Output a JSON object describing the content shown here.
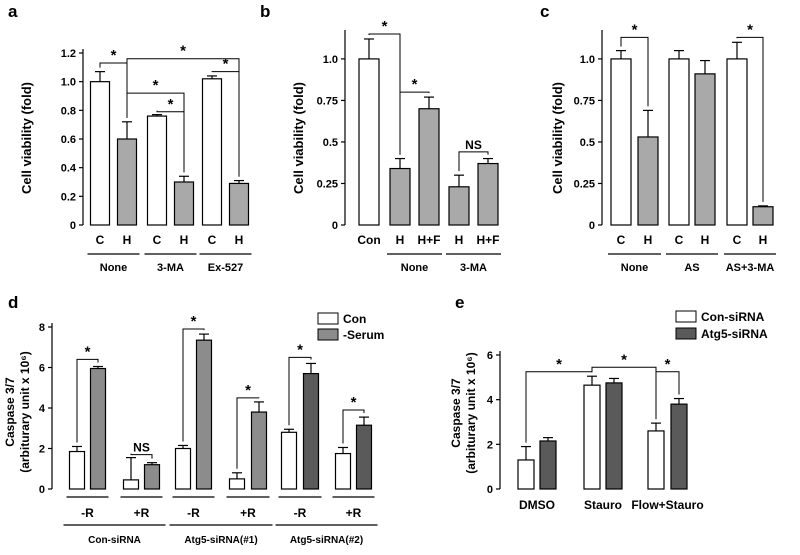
{
  "colors": {
    "white": "#ffffff",
    "light_gray": "#a9a9a9",
    "mid_gray": "#8c8c8c",
    "dark_gray": "#5a5a5a",
    "stroke": "#000000"
  },
  "chart_data": [
    {
      "id": "a",
      "type": "bar",
      "ylabel": "Cell viability (fold)",
      "ylim": [
        0,
        1.2
      ],
      "yticks": [
        "0",
        "0.2",
        "0.4",
        "0.6",
        "0.8",
        "1.0",
        "1.2"
      ],
      "categories": [
        "C",
        "H",
        "C",
        "H",
        "C",
        "H"
      ],
      "values": [
        1.0,
        0.6,
        0.76,
        0.3,
        1.02,
        0.29
      ],
      "errors": [
        0.07,
        0.12,
        0.01,
        0.04,
        0.02,
        0.02
      ],
      "fills": [
        "white",
        "light_gray",
        "white",
        "light_gray",
        "white",
        "light_gray"
      ],
      "groups": [
        {
          "label": "None",
          "from": 0,
          "to": 1
        },
        {
          "label": "3-MA",
          "from": 2,
          "to": 3
        },
        {
          "label": "Ex-527",
          "from": 4,
          "to": 5
        }
      ],
      "sig": [
        {
          "label": "*",
          "from": 0,
          "to": 1,
          "y": 1.13
        },
        {
          "label": "*",
          "from": 1,
          "to": 5,
          "y": 1.16
        },
        {
          "label": "*",
          "from": 1,
          "to": 3,
          "y": 0.92
        },
        {
          "label": "*",
          "from": 2,
          "to": 3,
          "y": 0.79
        },
        {
          "label": "*",
          "from": 4,
          "to": 5,
          "y": 1.07
        }
      ]
    },
    {
      "id": "b",
      "type": "bar",
      "ylabel": "Cell viability (fold)",
      "ylim": [
        0,
        1.15
      ],
      "yticks": [
        "0",
        "0.25",
        "0.5",
        "0.75",
        "1.0"
      ],
      "ytick_values": [
        0,
        0.25,
        0.5,
        0.75,
        1.0
      ],
      "categories": [
        "Con",
        "H",
        "H+F",
        "H",
        "H+F"
      ],
      "values": [
        1.0,
        0.34,
        0.7,
        0.23,
        0.37
      ],
      "errors": [
        0.12,
        0.06,
        0.07,
        0.07,
        0.03
      ],
      "fills": [
        "white",
        "light_gray",
        "light_gray",
        "light_gray",
        "light_gray"
      ],
      "groups": [
        {
          "label": "None",
          "from": 1,
          "to": 2
        },
        {
          "label": "3-MA",
          "from": 3,
          "to": 4
        }
      ],
      "sig": [
        {
          "label": "*",
          "from": 0,
          "to": 1,
          "y": 1.15
        },
        {
          "label": "*",
          "from": 1,
          "to": 2,
          "y": 0.8
        },
        {
          "label": "NS",
          "from": 3,
          "to": 4,
          "y": 0.44
        }
      ]
    },
    {
      "id": "c",
      "type": "bar",
      "ylabel": "Cell viability (fold)",
      "ylim": [
        0,
        1.15
      ],
      "yticks": [
        "0",
        "0.25",
        "0.5",
        "0.75",
        "1.0"
      ],
      "ytick_values": [
        0,
        0.25,
        0.5,
        0.75,
        1.0
      ],
      "categories": [
        "C",
        "H",
        "C",
        "H",
        "C",
        "H"
      ],
      "values": [
        1.0,
        0.53,
        1.0,
        0.91,
        1.0,
        0.11
      ],
      "errors": [
        0.05,
        0.16,
        0.05,
        0.08,
        0.1,
        0.005
      ],
      "fills": [
        "white",
        "light_gray",
        "white",
        "light_gray",
        "white",
        "light_gray"
      ],
      "groups": [
        {
          "label": "None",
          "from": 0,
          "to": 1
        },
        {
          "label": "AS",
          "from": 2,
          "to": 3
        },
        {
          "label": "AS+3-MA",
          "from": 4,
          "to": 5
        }
      ],
      "sig": [
        {
          "label": "*",
          "from": 0,
          "to": 1,
          "y": 1.13
        },
        {
          "label": "*",
          "from": 4,
          "to": 5,
          "y": 1.13
        }
      ]
    },
    {
      "id": "d",
      "type": "bar",
      "ylabel_line1": "Caspase 3/7",
      "ylabel_line2": "(arbiturary unit x 10⁶)",
      "ylim": [
        0,
        8
      ],
      "yticks": [
        "0",
        "2",
        "4",
        "6",
        "8"
      ],
      "ytick_values": [
        0,
        2,
        4,
        6,
        8
      ],
      "legend": [
        {
          "name": "Con",
          "fill": "white"
        },
        {
          "name": "-Serum",
          "fill": "mid_gray"
        }
      ],
      "categories": [
        "Con",
        "-Serum",
        "Con",
        "-Serum",
        "Con",
        "-Serum",
        "Con",
        "-Serum",
        "Con",
        "-Serum",
        "Con",
        "-Serum"
      ],
      "values": [
        1.85,
        5.95,
        0.45,
        1.2,
        2.0,
        7.35,
        0.5,
        3.8,
        2.8,
        5.7,
        1.75,
        3.15
      ],
      "errors": [
        0.25,
        0.1,
        1.1,
        0.1,
        0.15,
        0.3,
        0.3,
        0.5,
        0.15,
        0.5,
        0.3,
        0.4
      ],
      "fills": [
        "white",
        "mid_gray",
        "white",
        "mid_gray",
        "white",
        "mid_gray",
        "white",
        "mid_gray",
        "white",
        "dark_gray",
        "white",
        "dark_gray"
      ],
      "groups": [
        {
          "label": "-R",
          "from": 0,
          "to": 1
        },
        {
          "label": "+R",
          "from": 2,
          "to": 3
        },
        {
          "label": "-R",
          "from": 4,
          "to": 5
        },
        {
          "label": "+R",
          "from": 6,
          "to": 7
        },
        {
          "label": "-R",
          "from": 8,
          "to": 9
        },
        {
          "label": "+R",
          "from": 10,
          "to": 11
        }
      ],
      "supergroups": [
        {
          "label": "Con-siRNA",
          "from": 0,
          "to": 3
        },
        {
          "label": "Atg5-siRNA(#1)",
          "from": 4,
          "to": 7
        },
        {
          "label": "Atg5-siRNA(#2)",
          "from": 8,
          "to": 11
        }
      ],
      "sig": [
        {
          "label": "*",
          "from": 0,
          "to": 1,
          "y": 6.4
        },
        {
          "label": "NS",
          "from": 2,
          "to": 3,
          "y": 1.7
        },
        {
          "label": "*",
          "from": 4,
          "to": 5,
          "y": 7.9
        },
        {
          "label": "*",
          "from": 6,
          "to": 7,
          "y": 4.5
        },
        {
          "label": "*",
          "from": 8,
          "to": 9,
          "y": 6.5
        },
        {
          "label": "*",
          "from": 10,
          "to": 11,
          "y": 3.9
        }
      ]
    },
    {
      "id": "e",
      "type": "bar",
      "ylabel_line1": "Caspase 3/7",
      "ylabel_line2": "(arbiturary unit x 10⁶)",
      "ylim": [
        0,
        6
      ],
      "yticks": [
        "0",
        "2",
        "4",
        "6"
      ],
      "ytick_values": [
        0,
        2,
        4,
        6
      ],
      "legend": [
        {
          "name": "Con-siRNA",
          "fill": "white"
        },
        {
          "name": "Atg5-siRNA",
          "fill": "dark_gray"
        }
      ],
      "categories": [
        "Con-siRNA",
        "Atg5-siRNA",
        "Con-siRNA",
        "Atg5-siRNA",
        "Con-siRNA",
        "Atg5-siRNA"
      ],
      "values": [
        1.3,
        2.15,
        4.65,
        4.75,
        2.6,
        3.8
      ],
      "errors": [
        0.6,
        0.15,
        0.4,
        0.2,
        0.35,
        0.25
      ],
      "fills": [
        "white",
        "dark_gray",
        "white",
        "dark_gray",
        "white",
        "dark_gray"
      ],
      "groups": [
        {
          "label": "DMSO",
          "from": 0,
          "to": 1
        },
        {
          "label": "Stauro",
          "from": 2,
          "to": 3
        },
        {
          "label": "Flow+Stauro",
          "from": 4,
          "to": 5
        }
      ],
      "sig": [
        {
          "label": "*",
          "from": 0,
          "to": 2,
          "y": 5.25
        },
        {
          "label": "*",
          "from": 2,
          "to": 4,
          "y": 5.45
        },
        {
          "label": "*",
          "from": 4,
          "to": 5,
          "y": 5.25
        }
      ]
    }
  ]
}
